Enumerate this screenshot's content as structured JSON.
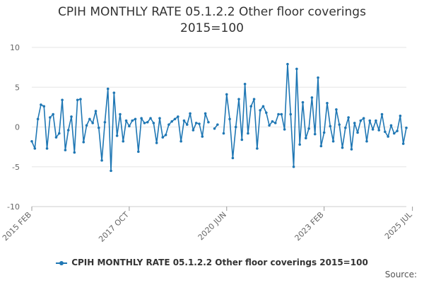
{
  "chart_data": {
    "type": "line",
    "title_line1": "CPIH MONTHLY RATE 05.1.2.2 Other floor coverings",
    "title_line2": "2015=100",
    "ylim": [
      -10,
      10
    ],
    "y_ticks": [
      10,
      5,
      0,
      -5,
      -10
    ],
    "x_ticks": [
      {
        "label": "2015 FEB",
        "index": 0
      },
      {
        "label": "2017 OCT",
        "index": 32
      },
      {
        "label": "2020 JUN",
        "index": 64
      },
      {
        "label": "2023 FEB",
        "index": 96
      },
      {
        "label": "2025 JUL",
        "index": 125
      }
    ],
    "grid": "horizontal",
    "legend_position": "bottom",
    "series": [
      {
        "name": "CPIH MONTHLY RATE 05.1.2.2 Other floor coverings 2015=100",
        "color": "#1f77b4",
        "values": [
          -1.8,
          -2.7,
          1.0,
          2.8,
          2.6,
          -2.7,
          1.2,
          1.6,
          -1.3,
          -0.8,
          3.4,
          -2.9,
          -0.4,
          1.3,
          -3.2,
          3.4,
          3.5,
          -1.9,
          0.2,
          1.0,
          0.5,
          2.0,
          -0.1,
          -4.2,
          0.6,
          4.8,
          -5.5,
          4.3,
          -1.1,
          1.6,
          -1.8,
          0.8,
          0.1,
          0.8,
          1.0,
          -3.1,
          1.1,
          0.5,
          0.6,
          1.1,
          0.5,
          -2.0,
          1.1,
          -1.3,
          -1.0,
          0.3,
          0.7,
          1.0,
          1.3,
          -1.8,
          0.8,
          0.3,
          1.7,
          -0.4,
          0.5,
          0.4,
          -1.2,
          1.7,
          0.6,
          null,
          -0.2,
          0.3,
          null,
          -0.8,
          4.1,
          1.0,
          -3.9,
          0.0,
          3.5,
          -1.6,
          5.4,
          -0.8,
          2.6,
          3.5,
          -2.7,
          2.1,
          2.6,
          1.8,
          0.2,
          0.7,
          0.5,
          1.6,
          1.6,
          -0.3,
          7.9,
          1.6,
          -5.0,
          7.3,
          -2.2,
          3.1,
          -1.4,
          -0.2,
          3.7,
          -0.9,
          6.2,
          -2.4,
          -0.7,
          3.0,
          0.1,
          -1.8,
          2.2,
          0.3,
          -2.6,
          -0.1,
          1.2,
          -2.8,
          0.5,
          -0.7,
          0.8,
          1.1,
          -1.8,
          0.8,
          -0.3,
          0.8,
          -0.4,
          1.6,
          -0.6,
          -1.2,
          0.2,
          -0.8,
          -0.5,
          1.4,
          -2.1,
          -0.1
        ]
      }
    ],
    "source_label": "Source:"
  }
}
